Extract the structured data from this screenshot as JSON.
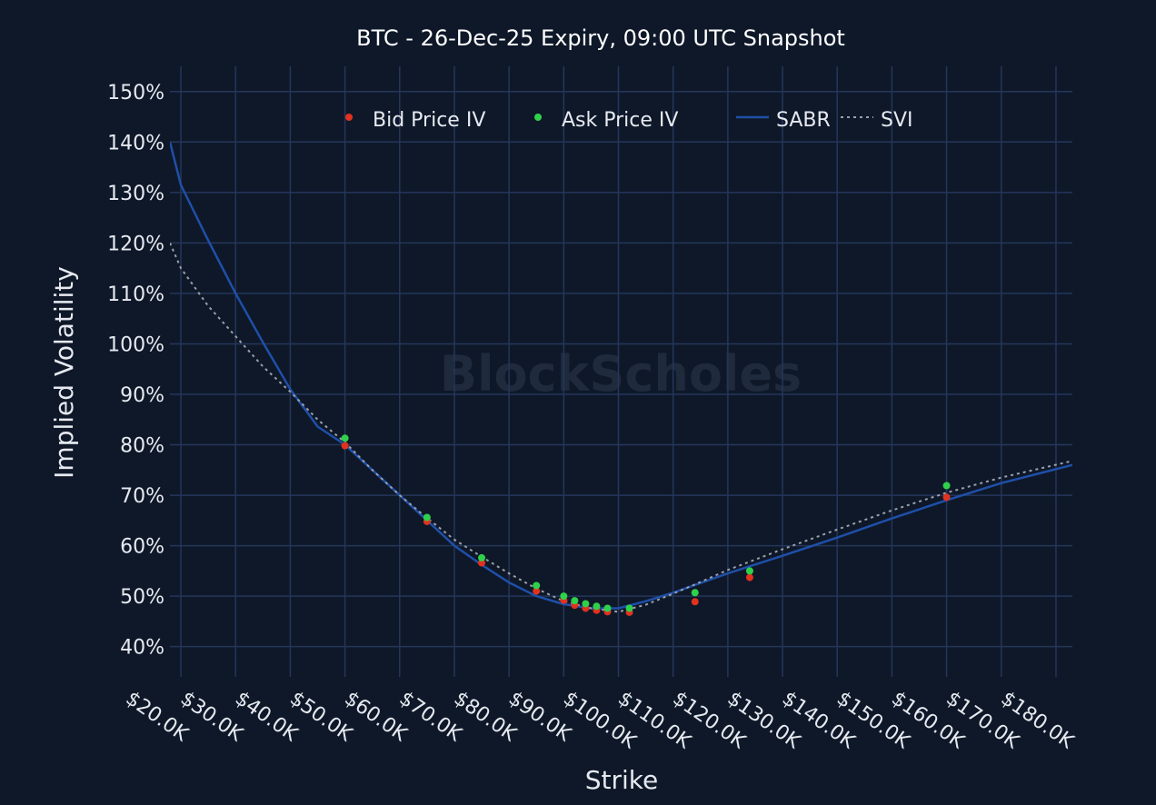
{
  "chart_data": {
    "type": "scatter",
    "title": "BTC - 26-Dec-25 Expiry, 09:00 UTC Snapshot",
    "xlabel": "Strike",
    "ylabel": "Implied Volatility",
    "watermark": "BlockScholes",
    "xlim": [
      18000,
      183000
    ],
    "ylim": [
      34,
      155
    ],
    "x_ticks": [
      20000,
      30000,
      40000,
      50000,
      60000,
      70000,
      80000,
      90000,
      100000,
      110000,
      120000,
      130000,
      140000,
      150000,
      160000,
      170000,
      180000
    ],
    "x_tick_labels": [
      "$20.0K",
      "$30.0K",
      "$40.0K",
      "$50.0K",
      "$60.0K",
      "$70.0K",
      "$80.0K",
      "$90.0K",
      "$100.0K",
      "$110.0K",
      "$120.0K",
      "$130.0K",
      "$140.0K",
      "$150.0K",
      "$160.0K",
      "$170.0K",
      "$180.0K"
    ],
    "y_ticks": [
      40,
      50,
      60,
      70,
      80,
      90,
      100,
      110,
      120,
      130,
      140,
      150
    ],
    "y_tick_labels": [
      "40%",
      "50%",
      "60%",
      "70%",
      "80%",
      "90%",
      "100%",
      "110%",
      "120%",
      "130%",
      "140%",
      "150%"
    ],
    "grid": true,
    "legend_position": "top-center",
    "series": [
      {
        "name": "Bid Price IV",
        "kind": "scatter",
        "color": "#e0321e",
        "x": [
          50000,
          65000,
          75000,
          85000,
          90000,
          92000,
          94000,
          96000,
          98000,
          102000,
          114000,
          124000,
          160000
        ],
        "y": [
          79.8,
          64.8,
          56.6,
          51.0,
          49.2,
          48.2,
          47.6,
          47.2,
          46.9,
          46.8,
          48.9,
          53.7,
          69.6
        ]
      },
      {
        "name": "Ask Price IV",
        "kind": "scatter",
        "color": "#2fd14a",
        "x": [
          50000,
          65000,
          75000,
          85000,
          90000,
          92000,
          94000,
          96000,
          98000,
          102000,
          114000,
          124000,
          160000
        ],
        "y": [
          81.3,
          65.6,
          57.6,
          52.1,
          50.0,
          49.1,
          48.5,
          48.0,
          47.6,
          47.6,
          50.7,
          55.0,
          71.9
        ]
      },
      {
        "name": "SABR",
        "kind": "line",
        "color": "#1f4fa8",
        "x": [
          18000,
          20000,
          25000,
          30000,
          35000,
          40000,
          45000,
          50000,
          55000,
          60000,
          65000,
          70000,
          75000,
          80000,
          85000,
          90000,
          95000,
          100000,
          105000,
          110000,
          115000,
          120000,
          130000,
          140000,
          150000,
          160000,
          170000,
          183000
        ],
        "y": [
          140.0,
          131.5,
          120.5,
          110.0,
          100.3,
          91.0,
          83.6,
          80.0,
          75.0,
          70.0,
          65.0,
          60.0,
          56.2,
          52.7,
          50.0,
          48.4,
          47.6,
          47.6,
          49.0,
          50.7,
          52.6,
          54.5,
          58.0,
          61.6,
          65.4,
          69.0,
          72.4,
          76.0
        ]
      },
      {
        "name": "SVI",
        "kind": "dotted-line",
        "color": "#9aa0a8",
        "x": [
          18000,
          20000,
          25000,
          30000,
          35000,
          40000,
          45000,
          50000,
          55000,
          60000,
          65000,
          70000,
          75000,
          80000,
          85000,
          90000,
          95000,
          100000,
          105000,
          110000,
          115000,
          120000,
          130000,
          140000,
          150000,
          160000,
          170000,
          183000
        ],
        "y": [
          120.0,
          115.0,
          107.5,
          101.5,
          95.5,
          90.5,
          85.0,
          80.5,
          75.0,
          70.0,
          65.5,
          61.2,
          57.8,
          54.5,
          51.5,
          49.0,
          47.6,
          46.9,
          48.3,
          50.5,
          52.8,
          55.2,
          59.3,
          63.2,
          67.0,
          70.5,
          73.5,
          76.8
        ]
      }
    ]
  }
}
